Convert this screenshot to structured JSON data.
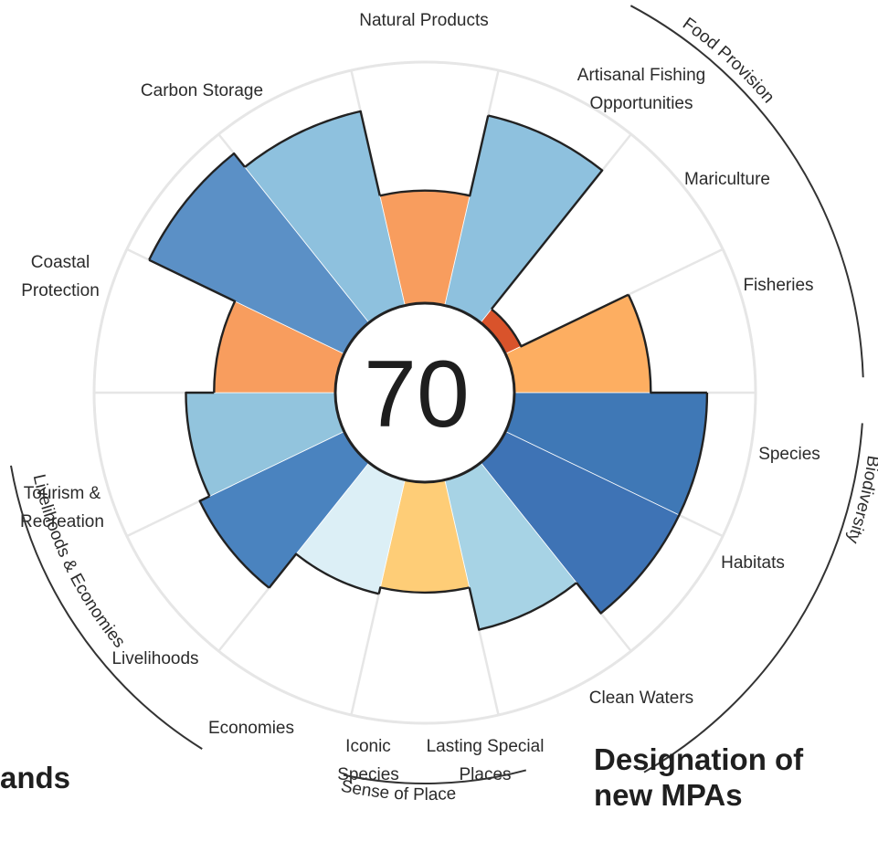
{
  "overlay": {
    "left_text": "ands",
    "right_line1": "Designation of",
    "right_line2": "new MPAs"
  },
  "chart_data": {
    "type": "polar-bar",
    "center_score": "70",
    "rmax": 100,
    "segments": [
      {
        "id": "natural-products",
        "label_lines": [
          "Natural Products"
        ],
        "value": 52,
        "color": "#F89D5E"
      },
      {
        "id": "artisanal-fishing",
        "label_lines": [
          "Artisanal Fishing",
          "Opportunities"
        ],
        "value": 90,
        "color": "#8EC1DE"
      },
      {
        "id": "mariculture",
        "label_lines": [
          "Mariculture"
        ],
        "value": 8,
        "color": "#D9532B"
      },
      {
        "id": "fisheries",
        "label_lines": [
          "Fisheries"
        ],
        "value": 63,
        "color": "#FDAE61"
      },
      {
        "id": "species",
        "label_lines": [
          "Species"
        ],
        "value": 89,
        "color": "#3F78B6"
      },
      {
        "id": "habitats",
        "label_lines": [
          "Habitats"
        ],
        "value": 89,
        "color": "#3E73B5"
      },
      {
        "id": "clean-waters",
        "label_lines": [
          "Clean Waters"
        ],
        "value": 71,
        "color": "#A7D3E5"
      },
      {
        "id": "lasting-special-places",
        "label_lines": [
          "Lasting Special",
          "Places"
        ],
        "value": 51,
        "color": "#FECD77"
      },
      {
        "id": "iconic-species",
        "label_lines": [
          "Iconic",
          "Species"
        ],
        "value": 54,
        "color": "#DCEFF6"
      },
      {
        "id": "economies",
        "label_lines": [
          "Economies"
        ],
        "value": 74,
        "color": "#4A83BF"
      },
      {
        "id": "livelihoods",
        "label_lines": [
          "Livelihoods"
        ],
        "value": 69,
        "color": "#92C4DD"
      },
      {
        "id": "tourism-recreation",
        "label_lines": [
          "Tourism &",
          "Recreation"
        ],
        "value": 56,
        "color": "#F89D5E"
      },
      {
        "id": "coastal-protection",
        "label_lines": [
          "Coastal",
          "Protection"
        ],
        "value": 100,
        "color": "#5B90C6"
      },
      {
        "id": "carbon-storage",
        "label_lines": [
          "Carbon Storage"
        ],
        "value": 92,
        "color": "#8EC1DE"
      }
    ],
    "groups": [
      {
        "id": "food-provision",
        "label": "Food Provision"
      },
      {
        "id": "biodiversity",
        "label": "Biodiversity"
      },
      {
        "id": "livelihoods-economies",
        "label": "Livelihoods & Economies"
      },
      {
        "id": "sense-of-place",
        "label": "Sense of Place"
      }
    ]
  }
}
